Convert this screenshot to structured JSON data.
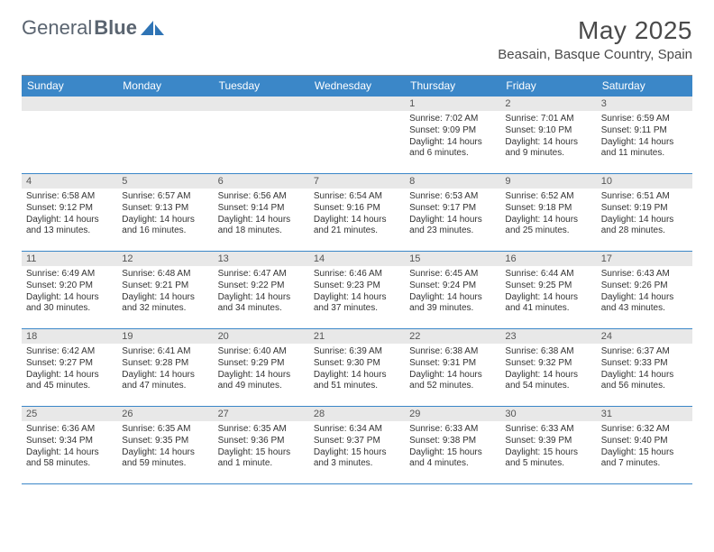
{
  "brand": {
    "general": "General",
    "blue": "Blue"
  },
  "title": "May 2025",
  "location": "Beasain, Basque Country, Spain",
  "colors": {
    "header_bg": "#3b87c8",
    "header_fg": "#ffffff",
    "daynum_bg": "#e8e8e8",
    "border": "#3b87c8",
    "text": "#333333",
    "title_text": "#4a4a4a",
    "logo_text": "#5a6470",
    "logo_icon": "#2f74b5",
    "page_bg": "#ffffff"
  },
  "day_headers": [
    "Sunday",
    "Monday",
    "Tuesday",
    "Wednesday",
    "Thursday",
    "Friday",
    "Saturday"
  ],
  "layout": {
    "columns": 7,
    "rows": 5,
    "leading_blanks": 4
  },
  "days": [
    {
      "n": "1",
      "sr": "Sunrise: 7:02 AM",
      "ss": "Sunset: 9:09 PM",
      "dl1": "Daylight: 14 hours",
      "dl2": "and 6 minutes."
    },
    {
      "n": "2",
      "sr": "Sunrise: 7:01 AM",
      "ss": "Sunset: 9:10 PM",
      "dl1": "Daylight: 14 hours",
      "dl2": "and 9 minutes."
    },
    {
      "n": "3",
      "sr": "Sunrise: 6:59 AM",
      "ss": "Sunset: 9:11 PM",
      "dl1": "Daylight: 14 hours",
      "dl2": "and 11 minutes."
    },
    {
      "n": "4",
      "sr": "Sunrise: 6:58 AM",
      "ss": "Sunset: 9:12 PM",
      "dl1": "Daylight: 14 hours",
      "dl2": "and 13 minutes."
    },
    {
      "n": "5",
      "sr": "Sunrise: 6:57 AM",
      "ss": "Sunset: 9:13 PM",
      "dl1": "Daylight: 14 hours",
      "dl2": "and 16 minutes."
    },
    {
      "n": "6",
      "sr": "Sunrise: 6:56 AM",
      "ss": "Sunset: 9:14 PM",
      "dl1": "Daylight: 14 hours",
      "dl2": "and 18 minutes."
    },
    {
      "n": "7",
      "sr": "Sunrise: 6:54 AM",
      "ss": "Sunset: 9:16 PM",
      "dl1": "Daylight: 14 hours",
      "dl2": "and 21 minutes."
    },
    {
      "n": "8",
      "sr": "Sunrise: 6:53 AM",
      "ss": "Sunset: 9:17 PM",
      "dl1": "Daylight: 14 hours",
      "dl2": "and 23 minutes."
    },
    {
      "n": "9",
      "sr": "Sunrise: 6:52 AM",
      "ss": "Sunset: 9:18 PM",
      "dl1": "Daylight: 14 hours",
      "dl2": "and 25 minutes."
    },
    {
      "n": "10",
      "sr": "Sunrise: 6:51 AM",
      "ss": "Sunset: 9:19 PM",
      "dl1": "Daylight: 14 hours",
      "dl2": "and 28 minutes."
    },
    {
      "n": "11",
      "sr": "Sunrise: 6:49 AM",
      "ss": "Sunset: 9:20 PM",
      "dl1": "Daylight: 14 hours",
      "dl2": "and 30 minutes."
    },
    {
      "n": "12",
      "sr": "Sunrise: 6:48 AM",
      "ss": "Sunset: 9:21 PM",
      "dl1": "Daylight: 14 hours",
      "dl2": "and 32 minutes."
    },
    {
      "n": "13",
      "sr": "Sunrise: 6:47 AM",
      "ss": "Sunset: 9:22 PM",
      "dl1": "Daylight: 14 hours",
      "dl2": "and 34 minutes."
    },
    {
      "n": "14",
      "sr": "Sunrise: 6:46 AM",
      "ss": "Sunset: 9:23 PM",
      "dl1": "Daylight: 14 hours",
      "dl2": "and 37 minutes."
    },
    {
      "n": "15",
      "sr": "Sunrise: 6:45 AM",
      "ss": "Sunset: 9:24 PM",
      "dl1": "Daylight: 14 hours",
      "dl2": "and 39 minutes."
    },
    {
      "n": "16",
      "sr": "Sunrise: 6:44 AM",
      "ss": "Sunset: 9:25 PM",
      "dl1": "Daylight: 14 hours",
      "dl2": "and 41 minutes."
    },
    {
      "n": "17",
      "sr": "Sunrise: 6:43 AM",
      "ss": "Sunset: 9:26 PM",
      "dl1": "Daylight: 14 hours",
      "dl2": "and 43 minutes."
    },
    {
      "n": "18",
      "sr": "Sunrise: 6:42 AM",
      "ss": "Sunset: 9:27 PM",
      "dl1": "Daylight: 14 hours",
      "dl2": "and 45 minutes."
    },
    {
      "n": "19",
      "sr": "Sunrise: 6:41 AM",
      "ss": "Sunset: 9:28 PM",
      "dl1": "Daylight: 14 hours",
      "dl2": "and 47 minutes."
    },
    {
      "n": "20",
      "sr": "Sunrise: 6:40 AM",
      "ss": "Sunset: 9:29 PM",
      "dl1": "Daylight: 14 hours",
      "dl2": "and 49 minutes."
    },
    {
      "n": "21",
      "sr": "Sunrise: 6:39 AM",
      "ss": "Sunset: 9:30 PM",
      "dl1": "Daylight: 14 hours",
      "dl2": "and 51 minutes."
    },
    {
      "n": "22",
      "sr": "Sunrise: 6:38 AM",
      "ss": "Sunset: 9:31 PM",
      "dl1": "Daylight: 14 hours",
      "dl2": "and 52 minutes."
    },
    {
      "n": "23",
      "sr": "Sunrise: 6:38 AM",
      "ss": "Sunset: 9:32 PM",
      "dl1": "Daylight: 14 hours",
      "dl2": "and 54 minutes."
    },
    {
      "n": "24",
      "sr": "Sunrise: 6:37 AM",
      "ss": "Sunset: 9:33 PM",
      "dl1": "Daylight: 14 hours",
      "dl2": "and 56 minutes."
    },
    {
      "n": "25",
      "sr": "Sunrise: 6:36 AM",
      "ss": "Sunset: 9:34 PM",
      "dl1": "Daylight: 14 hours",
      "dl2": "and 58 minutes."
    },
    {
      "n": "26",
      "sr": "Sunrise: 6:35 AM",
      "ss": "Sunset: 9:35 PM",
      "dl1": "Daylight: 14 hours",
      "dl2": "and 59 minutes."
    },
    {
      "n": "27",
      "sr": "Sunrise: 6:35 AM",
      "ss": "Sunset: 9:36 PM",
      "dl1": "Daylight: 15 hours",
      "dl2": "and 1 minute."
    },
    {
      "n": "28",
      "sr": "Sunrise: 6:34 AM",
      "ss": "Sunset: 9:37 PM",
      "dl1": "Daylight: 15 hours",
      "dl2": "and 3 minutes."
    },
    {
      "n": "29",
      "sr": "Sunrise: 6:33 AM",
      "ss": "Sunset: 9:38 PM",
      "dl1": "Daylight: 15 hours",
      "dl2": "and 4 minutes."
    },
    {
      "n": "30",
      "sr": "Sunrise: 6:33 AM",
      "ss": "Sunset: 9:39 PM",
      "dl1": "Daylight: 15 hours",
      "dl2": "and 5 minutes."
    },
    {
      "n": "31",
      "sr": "Sunrise: 6:32 AM",
      "ss": "Sunset: 9:40 PM",
      "dl1": "Daylight: 15 hours",
      "dl2": "and 7 minutes."
    }
  ]
}
